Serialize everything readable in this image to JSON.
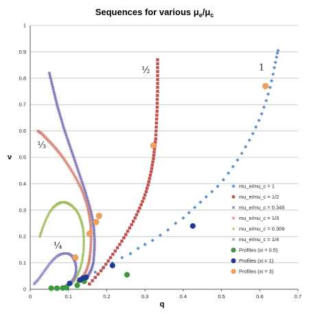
{
  "chart_data": {
    "type": "scatter",
    "title": "Sequences for various μe/μc",
    "title_parts": {
      "base": "Sequences for various μ",
      "sub1": "e",
      "slash": "/μ",
      "sub2": "c"
    },
    "xlabel": "q",
    "ylabel": "ν",
    "xlim": [
      0,
      0.7
    ],
    "ylim": [
      0,
      1
    ],
    "x_ticks": [
      "0",
      "0.1",
      "0.2",
      "0.3",
      "0.4",
      "0.5",
      "0.6",
      "0.7"
    ],
    "y_ticks": [
      "0",
      "0.1",
      "0.2",
      "0.3",
      "0.4",
      "0.5",
      "0.6",
      "0.7",
      "0.8",
      "0.9",
      "1"
    ],
    "grid": "horizontal",
    "legend_position": "right",
    "annotations": [
      {
        "text": "1",
        "x": 0.605,
        "y": 0.83
      },
      {
        "text": "½",
        "x": 0.302,
        "y": 0.82
      },
      {
        "text": "⅓",
        "x": 0.03,
        "y": 0.535
      },
      {
        "text": "¼",
        "x": 0.072,
        "y": 0.155
      }
    ],
    "series": [
      {
        "name": "mu_e/mu_c = 1",
        "marker": "diamond",
        "color": "#5b8fc7",
        "size": 2.6,
        "points": [
          [
            0.1,
            0.02
          ],
          [
            0.125,
            0.03
          ],
          [
            0.15,
            0.05
          ],
          [
            0.17,
            0.065
          ],
          [
            0.19,
            0.08
          ],
          [
            0.215,
            0.1
          ],
          [
            0.24,
            0.12
          ],
          [
            0.262,
            0.135
          ],
          [
            0.282,
            0.155
          ],
          [
            0.3,
            0.17
          ],
          [
            0.32,
            0.185
          ],
          [
            0.34,
            0.205
          ],
          [
            0.36,
            0.225
          ],
          [
            0.38,
            0.25
          ],
          [
            0.4,
            0.27
          ],
          [
            0.415,
            0.29
          ],
          [
            0.43,
            0.31
          ],
          [
            0.445,
            0.33
          ],
          [
            0.46,
            0.35
          ],
          [
            0.475,
            0.37
          ],
          [
            0.49,
            0.39
          ],
          [
            0.505,
            0.415
          ],
          [
            0.518,
            0.44
          ],
          [
            0.53,
            0.465
          ],
          [
            0.542,
            0.49
          ],
          [
            0.553,
            0.515
          ],
          [
            0.563,
            0.54
          ],
          [
            0.573,
            0.565
          ],
          [
            0.582,
            0.59
          ],
          [
            0.59,
            0.615
          ],
          [
            0.598,
            0.64
          ],
          [
            0.605,
            0.665
          ],
          [
            0.611,
            0.69
          ],
          [
            0.617,
            0.715
          ],
          [
            0.622,
            0.74
          ],
          [
            0.627,
            0.765
          ],
          [
            0.631,
            0.79
          ],
          [
            0.635,
            0.815
          ],
          [
            0.638,
            0.84
          ],
          [
            0.641,
            0.86
          ],
          [
            0.644,
            0.88
          ],
          [
            0.646,
            0.895
          ],
          [
            0.648,
            0.905
          ]
        ]
      },
      {
        "name": "mu_e/mu_c = 1/2",
        "marker": "square",
        "color": "#c0504d",
        "size": 2.2,
        "points": [
          [
            0.155,
            0.02
          ],
          [
            0.17,
            0.045
          ],
          [
            0.185,
            0.07
          ],
          [
            0.198,
            0.095
          ],
          [
            0.21,
            0.12
          ],
          [
            0.222,
            0.145
          ],
          [
            0.234,
            0.17
          ],
          [
            0.245,
            0.195
          ],
          [
            0.255,
            0.22
          ],
          [
            0.265,
            0.245
          ],
          [
            0.274,
            0.27
          ],
          [
            0.282,
            0.295
          ],
          [
            0.29,
            0.32
          ],
          [
            0.297,
            0.345
          ],
          [
            0.303,
            0.37
          ],
          [
            0.308,
            0.395
          ],
          [
            0.312,
            0.42
          ],
          [
            0.316,
            0.445
          ],
          [
            0.319,
            0.47
          ],
          [
            0.322,
            0.495
          ],
          [
            0.324,
            0.52
          ],
          [
            0.326,
            0.545
          ],
          [
            0.328,
            0.57
          ],
          [
            0.329,
            0.6
          ],
          [
            0.33,
            0.63
          ],
          [
            0.331,
            0.66
          ],
          [
            0.332,
            0.69
          ],
          [
            0.332,
            0.72
          ],
          [
            0.333,
            0.75
          ],
          [
            0.333,
            0.78
          ],
          [
            0.333,
            0.81
          ],
          [
            0.333,
            0.84
          ],
          [
            0.333,
            0.87
          ]
        ]
      },
      {
        "name": "mu_e/mu_c = 0.345",
        "marker": "cross",
        "color": "#7b6db3",
        "size": 1.8,
        "points": [
          [
            0.05,
            0.82
          ],
          [
            0.055,
            0.79
          ],
          [
            0.06,
            0.76
          ],
          [
            0.065,
            0.73
          ],
          [
            0.07,
            0.7
          ],
          [
            0.076,
            0.67
          ],
          [
            0.082,
            0.64
          ],
          [
            0.088,
            0.61
          ],
          [
            0.095,
            0.58
          ],
          [
            0.102,
            0.55
          ],
          [
            0.109,
            0.52
          ],
          [
            0.116,
            0.49
          ],
          [
            0.123,
            0.46
          ],
          [
            0.13,
            0.43
          ],
          [
            0.137,
            0.4
          ],
          [
            0.144,
            0.37
          ],
          [
            0.15,
            0.34
          ],
          [
            0.156,
            0.31
          ],
          [
            0.161,
            0.28
          ],
          [
            0.165,
            0.25
          ],
          [
            0.167,
            0.22
          ],
          [
            0.168,
            0.19
          ],
          [
            0.168,
            0.16
          ],
          [
            0.167,
            0.13
          ],
          [
            0.165,
            0.1
          ],
          [
            0.16,
            0.075
          ],
          [
            0.153,
            0.055
          ],
          [
            0.145,
            0.04
          ]
        ]
      },
      {
        "name": "mu_e/mu_c = 1/3",
        "marker": "cross",
        "color": "#d08074",
        "size": 1.8,
        "points": [
          [
            0.02,
            0.6
          ],
          [
            0.03,
            0.59
          ],
          [
            0.04,
            0.575
          ],
          [
            0.05,
            0.56
          ],
          [
            0.06,
            0.545
          ],
          [
            0.07,
            0.528
          ],
          [
            0.08,
            0.51
          ],
          [
            0.09,
            0.49
          ],
          [
            0.1,
            0.468
          ],
          [
            0.11,
            0.445
          ],
          [
            0.12,
            0.42
          ],
          [
            0.13,
            0.392
          ],
          [
            0.138,
            0.365
          ],
          [
            0.145,
            0.335
          ],
          [
            0.151,
            0.305
          ],
          [
            0.155,
            0.275
          ],
          [
            0.158,
            0.245
          ],
          [
            0.159,
            0.215
          ],
          [
            0.159,
            0.185
          ],
          [
            0.158,
            0.155
          ],
          [
            0.156,
            0.125
          ],
          [
            0.153,
            0.1
          ],
          [
            0.148,
            0.075
          ],
          [
            0.141,
            0.055
          ],
          [
            0.133,
            0.04
          ],
          [
            0.124,
            0.028
          ]
        ]
      },
      {
        "name": "mu_e/mu_c = 0.309",
        "marker": "cross",
        "color": "#9bbb59",
        "size": 1.6,
        "points": [
          [
            0.025,
            0.2
          ],
          [
            0.032,
            0.23
          ],
          [
            0.04,
            0.26
          ],
          [
            0.05,
            0.29
          ],
          [
            0.06,
            0.31
          ],
          [
            0.07,
            0.322
          ],
          [
            0.08,
            0.329
          ],
          [
            0.09,
            0.33
          ],
          [
            0.1,
            0.325
          ],
          [
            0.11,
            0.315
          ],
          [
            0.12,
            0.3
          ],
          [
            0.128,
            0.28
          ],
          [
            0.134,
            0.255
          ],
          [
            0.138,
            0.23
          ],
          [
            0.14,
            0.2
          ],
          [
            0.14,
            0.17
          ],
          [
            0.139,
            0.14
          ],
          [
            0.136,
            0.11
          ],
          [
            0.131,
            0.08
          ],
          [
            0.124,
            0.055
          ],
          [
            0.116,
            0.035
          ],
          [
            0.108,
            0.022
          ]
        ]
      },
      {
        "name": "mu_e/mu_c = 1/4",
        "marker": "cross",
        "color": "#8a7fc0",
        "size": 1.6,
        "points": [
          [
            0.01,
            0.02
          ],
          [
            0.02,
            0.035
          ],
          [
            0.03,
            0.055
          ],
          [
            0.04,
            0.075
          ],
          [
            0.05,
            0.095
          ],
          [
            0.06,
            0.112
          ],
          [
            0.07,
            0.125
          ],
          [
            0.08,
            0.133
          ],
          [
            0.09,
            0.136
          ],
          [
            0.1,
            0.135
          ],
          [
            0.108,
            0.128
          ],
          [
            0.114,
            0.115
          ],
          [
            0.118,
            0.1
          ],
          [
            0.12,
            0.085
          ],
          [
            0.12,
            0.07
          ],
          [
            0.118,
            0.055
          ],
          [
            0.114,
            0.04
          ],
          [
            0.108,
            0.028
          ],
          [
            0.1,
            0.018
          ],
          [
            0.092,
            0.012
          ]
        ]
      },
      {
        "name": "Profiles (xi = 0.5)",
        "marker": "circle",
        "color": "#3a9a3a",
        "size": 4,
        "points": [
          [
            0.055,
            0.004
          ],
          [
            0.07,
            0.004
          ],
          [
            0.085,
            0.005
          ],
          [
            0.095,
            0.006
          ],
          [
            0.123,
            0.015
          ],
          [
            0.141,
            0.03
          ],
          [
            0.253,
            0.055
          ]
        ]
      },
      {
        "name": "Profiles (xi = 1)",
        "marker": "circle",
        "color": "#1f3a93",
        "size": 4,
        "points": [
          [
            0.103,
            0.022
          ],
          [
            0.13,
            0.035
          ],
          [
            0.138,
            0.042
          ],
          [
            0.146,
            0.045
          ],
          [
            0.215,
            0.09
          ],
          [
            0.425,
            0.24
          ]
        ]
      },
      {
        "name": "Profiles (xi = 3)",
        "marker": "circle",
        "color": "#f0a058",
        "size": 4.5,
        "points": [
          [
            0.118,
            0.12
          ],
          [
            0.155,
            0.21
          ],
          [
            0.172,
            0.255
          ],
          [
            0.18,
            0.278
          ],
          [
            0.322,
            0.545
          ],
          [
            0.615,
            0.77
          ]
        ]
      }
    ]
  }
}
